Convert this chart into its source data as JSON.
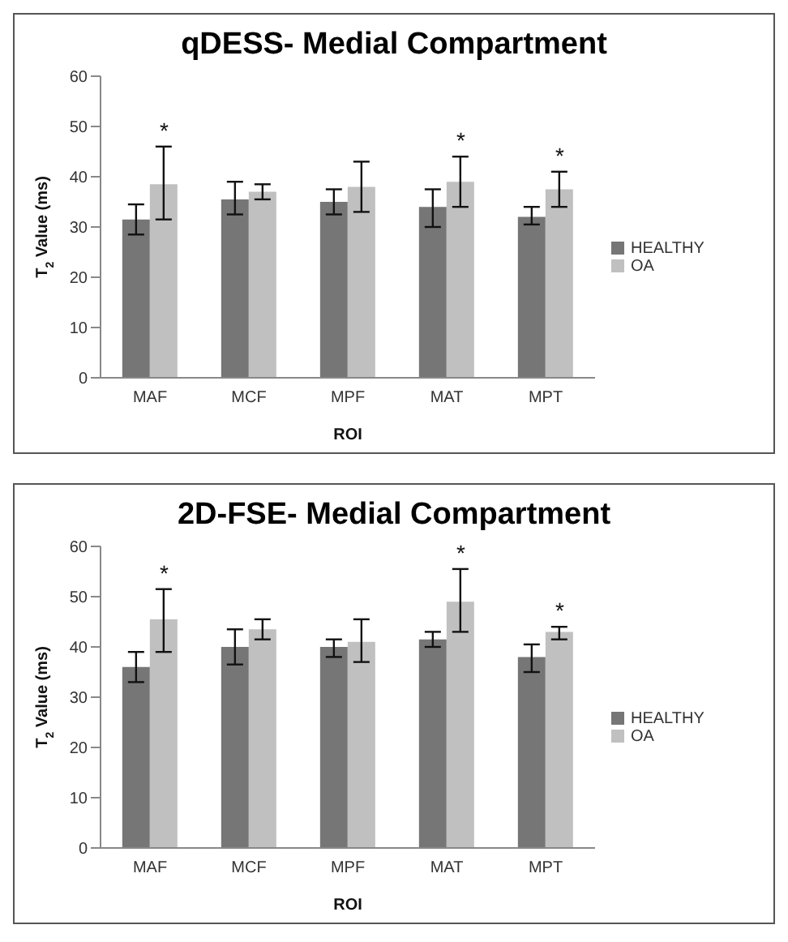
{
  "chart_data": [
    {
      "type": "bar",
      "title": "qDESS- Medial Compartment",
      "xlabel": "ROI",
      "ylabel": "T$_{2}$ Value (ms)",
      "categories": [
        "MAF",
        "MCF",
        "MPF",
        "MAT",
        "MPT"
      ],
      "series": [
        {
          "name": "HEALTHY",
          "color": "#767676",
          "values": [
            31.5,
            35.5,
            35,
            34,
            32
          ],
          "errors": [
            [
              28.5,
              34.5
            ],
            [
              32.5,
              39
            ],
            [
              32.5,
              37.5
            ],
            [
              30,
              37.5
            ],
            [
              30.5,
              34
            ]
          ]
        },
        {
          "name": "OA",
          "color": "#c0c0c0",
          "values": [
            38.5,
            37,
            38,
            39,
            37.5
          ],
          "errors": [
            [
              31.5,
              46
            ],
            [
              35.5,
              38.5
            ],
            [
              33,
              43
            ],
            [
              34,
              44
            ],
            [
              34,
              41
            ]
          ]
        }
      ],
      "ylim": [
        0,
        60
      ],
      "yticks": [
        0,
        10,
        20,
        30,
        40,
        50,
        60
      ],
      "legend": "right",
      "annotations": [
        {
          "text": "*",
          "x": "MAF",
          "y": 46
        },
        {
          "text": "*",
          "x": "MAT",
          "y": 44
        },
        {
          "text": "*",
          "x": "MPT",
          "y": 41
        }
      ]
    },
    {
      "type": "bar",
      "title": "2D-FSE- Medial Compartment",
      "xlabel": "ROI",
      "ylabel": "T$_{2}$ Value (ms)",
      "categories": [
        "MAF",
        "MCF",
        "MPF",
        "MAT",
        "MPT"
      ],
      "series": [
        {
          "name": "HEALTHY",
          "color": "#767676",
          "values": [
            36,
            40,
            40,
            41.5,
            38
          ],
          "errors": [
            [
              33,
              39
            ],
            [
              36.5,
              43.5
            ],
            [
              38,
              41.5
            ],
            [
              40,
              43
            ],
            [
              35,
              40.5
            ]
          ]
        },
        {
          "name": "OA",
          "color": "#c0c0c0",
          "values": [
            45.5,
            43.5,
            41,
            49,
            43
          ],
          "errors": [
            [
              39,
              51.5
            ],
            [
              41.5,
              45.5
            ],
            [
              37,
              45.5
            ],
            [
              43,
              55.5
            ],
            [
              41.5,
              44
            ]
          ]
        }
      ],
      "ylim": [
        0,
        60
      ],
      "yticks": [
        0,
        10,
        20,
        30,
        40,
        50,
        60
      ],
      "legend": "right",
      "annotations": [
        {
          "text": "*",
          "x": "MAF",
          "y": 51.5
        },
        {
          "text": "*",
          "x": "MAT",
          "y": 55.5
        },
        {
          "text": "*",
          "x": "MPT",
          "y": 44
        }
      ]
    }
  ]
}
